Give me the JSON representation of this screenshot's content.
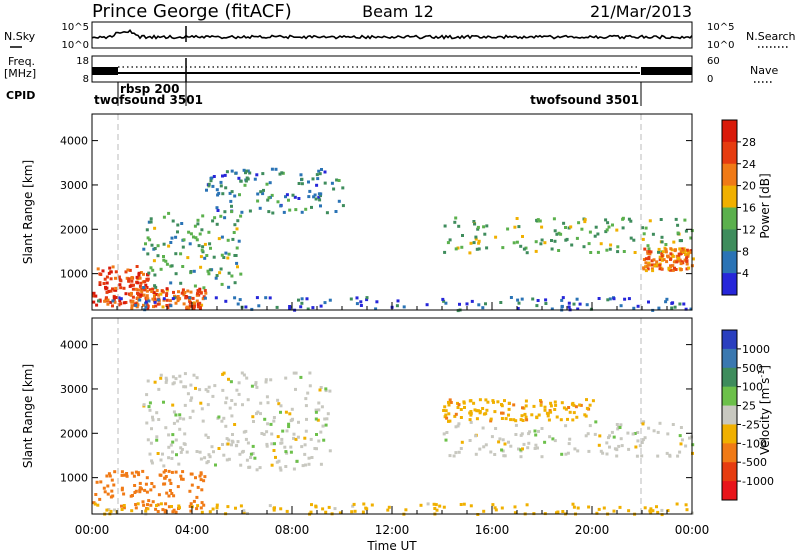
{
  "header": {
    "station": "Prince George (fitACF)",
    "beam": "Beam 12",
    "date": "21/Mar/2013"
  },
  "nsky_panel": {
    "left_label": "N.Sky",
    "right_label": "N.Search",
    "left_ticks": [
      "10^5",
      "10^0"
    ],
    "right_ticks": [
      "10^5",
      "10^0"
    ]
  },
  "freq_panel": {
    "left_label_1": "Freq.",
    "left_label_2": "[MHz]",
    "right_label": "Nave",
    "left_ticks": [
      "18",
      "8"
    ],
    "right_ticks": [
      "60",
      "0"
    ]
  },
  "cpid": {
    "label": "CPID",
    "segments": [
      {
        "name": "twofsound 3501",
        "start_hour": 0.0,
        "end_hour": 1.0
      },
      {
        "name": "rbsp 200",
        "start_hour": 1.0,
        "end_hour": 3.75
      },
      {
        "name": "twofsound 3501",
        "start_hour": 21.8,
        "end_hour": 24.0
      }
    ]
  },
  "chart_data": [
    {
      "type": "heatmap",
      "name": "power",
      "ylabel": "Slant Range [km]",
      "x_range_hours": [
        0,
        24
      ],
      "ylim": [
        180,
        4600
      ],
      "y_ticks": [
        1000,
        2000,
        3000,
        4000
      ],
      "colorbar_label": "Power [dB]",
      "colorbar_ticks": [
        4,
        8,
        12,
        16,
        20,
        24,
        28
      ],
      "colorbar_range": [
        0,
        32
      ],
      "colors": [
        "#2626d9",
        "#2a73b5",
        "#3e8c5c",
        "#5bb04d",
        "#f0b000",
        "#f07a16",
        "#e63c10",
        "#d91a0a"
      ],
      "features": [
        {
          "t0": 0,
          "t1": 2.2,
          "r0": 300,
          "r1": 1200,
          "level": 26
        },
        {
          "t0": 1.5,
          "t1": 4.5,
          "r0": 250,
          "r1": 700,
          "level": 24
        },
        {
          "t0": 2.0,
          "t1": 6.0,
          "r0": 700,
          "r1": 2400,
          "level": 12
        },
        {
          "t0": 4.5,
          "t1": 10.0,
          "r0": 2400,
          "r1": 3400,
          "level": 8
        },
        {
          "t0": 14.0,
          "t1": 24.0,
          "r0": 1500,
          "r1": 2300,
          "level": 13
        },
        {
          "t0": 22.0,
          "t1": 24.0,
          "r0": 1100,
          "r1": 1600,
          "level": 22
        },
        {
          "t0": 0,
          "t1": 24.0,
          "r0": 200,
          "r1": 500,
          "level": 5
        }
      ]
    },
    {
      "type": "heatmap",
      "name": "velocity",
      "ylabel": "Slant Range [km]",
      "xlabel": "Time UT",
      "x_ticks": [
        "00:00",
        "04:00",
        "08:00",
        "12:00",
        "16:00",
        "20:00",
        "00:00"
      ],
      "x_range_hours": [
        0,
        24
      ],
      "ylim": [
        180,
        4600
      ],
      "y_ticks": [
        1000,
        2000,
        3000,
        4000
      ],
      "colorbar_label": "Velocity [m s^-1]",
      "colorbar_ticks": [
        1000,
        500,
        100,
        25,
        -25,
        -100,
        -500,
        -1000
      ],
      "colors": [
        "#2a3fbf",
        "#3a78b0",
        "#3e8c5c",
        "#6cc04a",
        "#c8c8c0",
        "#f0b000",
        "#f07a16",
        "#e63c10",
        "#e8141a"
      ],
      "features": [
        {
          "t0": 0,
          "t1": 4.5,
          "r0": 250,
          "r1": 1200,
          "level": -300
        },
        {
          "t0": 2.0,
          "t1": 9.5,
          "r0": 1200,
          "r1": 3400,
          "level": 0
        },
        {
          "t0": 14.0,
          "t1": 24.0,
          "r0": 1500,
          "r1": 2300,
          "level": 0
        },
        {
          "t0": 14.0,
          "t1": 20.0,
          "r0": 2300,
          "r1": 2800,
          "level": -80
        },
        {
          "t0": 0,
          "t1": 24.0,
          "r0": 200,
          "r1": 450,
          "level": -50
        }
      ]
    }
  ]
}
